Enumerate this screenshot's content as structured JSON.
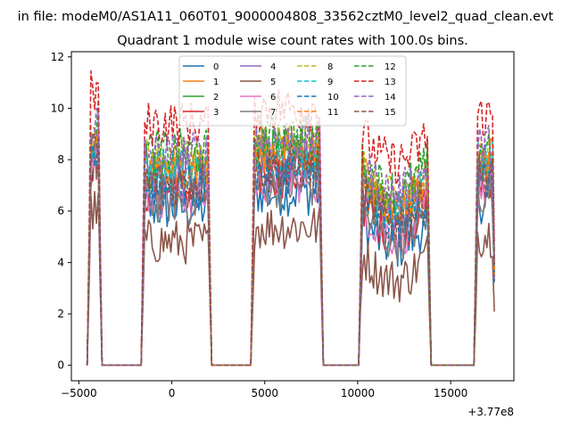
{
  "suptitle": "in file: modeM0/AS1A11_060T01_9000004808_33562cztM0_level2_quad_clean.evt",
  "chart_data": {
    "type": "line",
    "title": "Quadrant 1 module wise count rates with 100.0s bins.",
    "xlabel": "",
    "ylabel": "",
    "x_offset_label": "+3.77e8",
    "xlim": [
      -5400,
      18400
    ],
    "ylim": [
      -0.6,
      12.2
    ],
    "x_ticks": [
      -5000,
      0,
      5000,
      10000,
      15000
    ],
    "x_tick_labels": [
      "−5000",
      "0",
      "5000",
      "10000",
      "15000"
    ],
    "y_ticks": [
      0,
      2,
      4,
      6,
      8,
      10,
      12
    ],
    "y_tick_labels": [
      "0",
      "2",
      "4",
      "6",
      "8",
      "10",
      "12"
    ],
    "grid": false,
    "legend": {
      "location": "upper-center",
      "columns": 4
    },
    "active_intervals": [
      [
        -4500,
        -3800
      ],
      [
        -1600,
        2100
      ],
      [
        4300,
        8100
      ],
      [
        10100,
        13900
      ],
      [
        16300,
        17400
      ]
    ],
    "series": [
      {
        "name": "0",
        "color": "#1f77b4",
        "dash": "solid",
        "level": 6.3
      },
      {
        "name": "1",
        "color": "#ff7f0e",
        "dash": "solid",
        "level": 7.6
      },
      {
        "name": "2",
        "color": "#2ca02c",
        "dash": "solid",
        "level": 7.9
      },
      {
        "name": "3",
        "color": "#d62728",
        "dash": "solid",
        "level": 7.0
      },
      {
        "name": "4",
        "color": "#9467bd",
        "dash": "solid",
        "level": 7.5
      },
      {
        "name": "5",
        "color": "#8c564b",
        "dash": "solid",
        "level": 5.0
      },
      {
        "name": "6",
        "color": "#e377c2",
        "dash": "solid",
        "level": 6.8
      },
      {
        "name": "7",
        "color": "#7f7f7f",
        "dash": "solid",
        "level": 6.6
      },
      {
        "name": "8",
        "color": "#bcbd22",
        "dash": "dashed",
        "level": 8.2
      },
      {
        "name": "9",
        "color": "#17becf",
        "dash": "dashed",
        "level": 7.8
      },
      {
        "name": "10",
        "color": "#1f77b4",
        "dash": "dashed",
        "level": 7.1
      },
      {
        "name": "11",
        "color": "#ff7f0e",
        "dash": "dashed",
        "level": 8.0
      },
      {
        "name": "12",
        "color": "#2ca02c",
        "dash": "dashed",
        "level": 8.5
      },
      {
        "name": "13",
        "color": "#d62728",
        "dash": "dashed",
        "level": 9.6
      },
      {
        "name": "14",
        "color": "#9467bd",
        "dash": "dashed",
        "level": 8.4
      },
      {
        "name": "15",
        "color": "#8c564b",
        "dash": "dashed",
        "level": 7.3
      }
    ]
  }
}
